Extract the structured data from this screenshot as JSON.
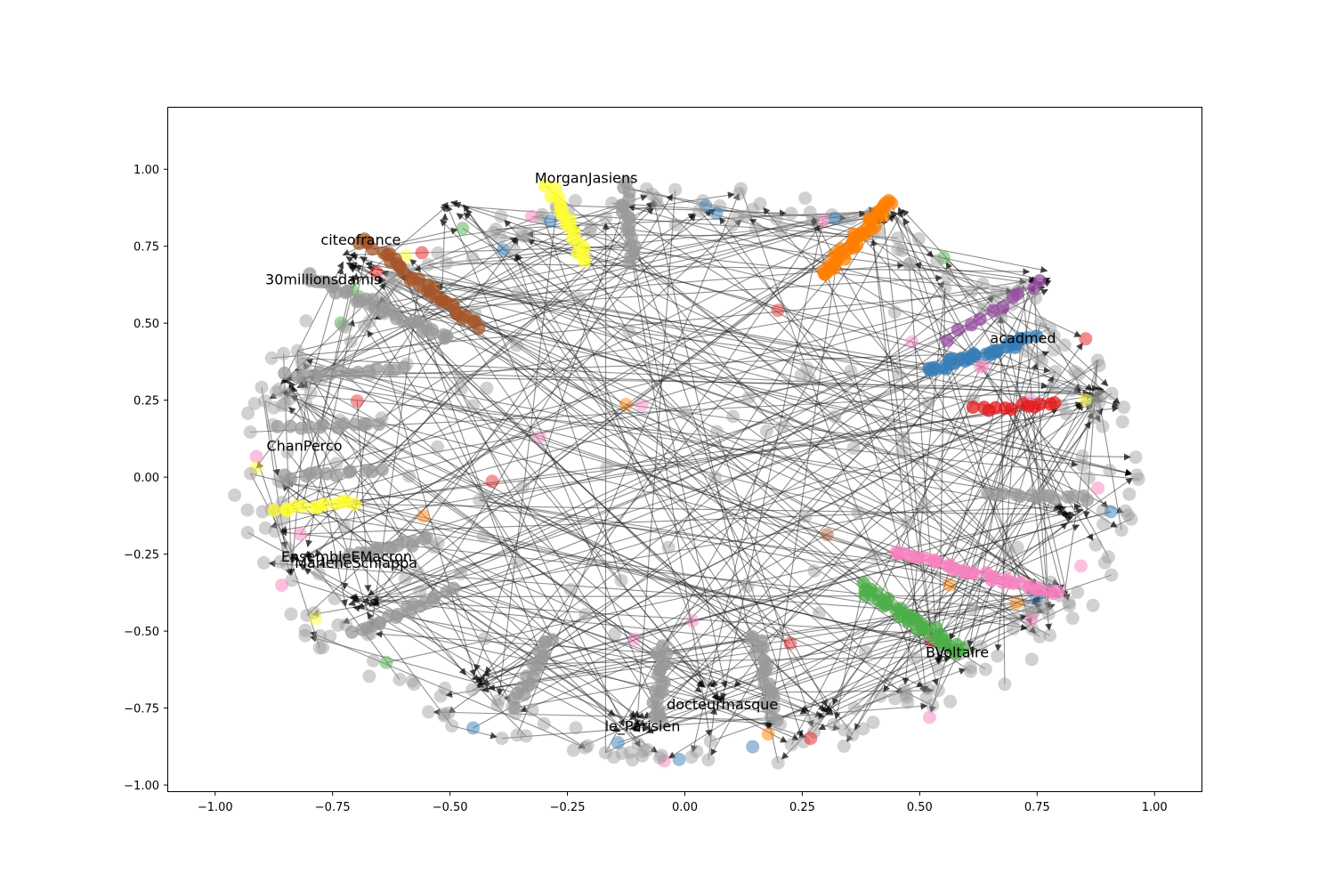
{
  "chart_data": {
    "type": "scatter",
    "title": "",
    "xlabel": "",
    "ylabel": "",
    "xlim": [
      -1.1,
      1.1
    ],
    "ylim": [
      -1.02,
      1.2
    ],
    "grid": false,
    "x_ticks": [
      -1.0,
      -0.75,
      -0.5,
      -0.25,
      0.0,
      0.25,
      0.5,
      0.75,
      1.0
    ],
    "y_ticks": [
      -1.0,
      -0.75,
      -0.5,
      -0.25,
      0.0,
      0.25,
      0.5,
      0.75,
      1.0
    ],
    "x_tick_labels": [
      "−1.00",
      "−0.75",
      "−0.50",
      "−0.25",
      "0.00",
      "0.25",
      "0.50",
      "0.75",
      "1.00"
    ],
    "y_tick_labels": [
      "−1.00",
      "−0.75",
      "−0.50",
      "−0.25",
      "0.00",
      "0.25",
      "0.50",
      "0.75",
      "1.00"
    ],
    "colors": {
      "gray": "#999999",
      "blue": "#377eb8",
      "orange": "#ff7f00",
      "green": "#4daf4a",
      "pink": "#f781bf",
      "brown": "#a65628",
      "purple": "#984ea3",
      "red": "#e41a1c",
      "yellow": "#ffff33",
      "edge": "#222222"
    },
    "clusters": [
      {
        "color": "orange",
        "x1": 0.29,
        "y1": 0.65,
        "x2": 0.44,
        "y2": 0.9,
        "n": 38,
        "width": 0.012
      },
      {
        "color": "blue",
        "x1": 0.52,
        "y1": 0.35,
        "x2": 0.74,
        "y2": 0.45,
        "n": 36,
        "width": 0.012
      },
      {
        "color": "green",
        "x1": 0.37,
        "y1": -0.35,
        "x2": 0.59,
        "y2": -0.57,
        "n": 40,
        "width": 0.014
      },
      {
        "color": "pink",
        "x1": 0.45,
        "y1": -0.24,
        "x2": 0.79,
        "y2": -0.38,
        "n": 34,
        "width": 0.01
      },
      {
        "color": "brown",
        "x1": -0.69,
        "y1": 0.78,
        "x2": -0.44,
        "y2": 0.49,
        "n": 34,
        "width": 0.012
      },
      {
        "color": "gray",
        "x1": -0.8,
        "y1": 0.65,
        "x2": -0.5,
        "y2": 0.45,
        "n": 32,
        "width": 0.012
      },
      {
        "color": "yellow",
        "x1": -0.29,
        "y1": 0.95,
        "x2": -0.21,
        "y2": 0.7,
        "n": 18,
        "width": 0.01
      },
      {
        "color": "gray",
        "x1": -0.13,
        "y1": 0.95,
        "x2": -0.11,
        "y2": 0.7,
        "n": 18,
        "width": 0.01
      },
      {
        "color": "gray",
        "x1": -0.05,
        "y1": -0.55,
        "x2": -0.06,
        "y2": -0.79,
        "n": 22,
        "width": 0.012
      },
      {
        "color": "gray",
        "x1": 0.15,
        "y1": -0.51,
        "x2": 0.19,
        "y2": -0.78,
        "n": 22,
        "width": 0.012
      },
      {
        "color": "gray",
        "x1": -0.29,
        "y1": -0.52,
        "x2": -0.36,
        "y2": -0.74,
        "n": 18,
        "width": 0.01
      },
      {
        "color": "gray",
        "x1": -0.5,
        "y1": -0.37,
        "x2": -0.7,
        "y2": -0.51,
        "n": 18,
        "width": 0.01
      },
      {
        "color": "gray",
        "x1": -0.55,
        "y1": -0.2,
        "x2": -0.73,
        "y2": -0.27,
        "n": 16,
        "width": 0.01
      },
      {
        "color": "yellow",
        "x1": -0.87,
        "y1": -0.11,
        "x2": -0.7,
        "y2": -0.08,
        "n": 12,
        "width": 0.008
      },
      {
        "color": "purple",
        "x1": 0.56,
        "y1": 0.45,
        "x2": 0.76,
        "y2": 0.64,
        "n": 10,
        "width": 0.008
      },
      {
        "color": "red",
        "x1": 0.62,
        "y1": 0.22,
        "x2": 0.79,
        "y2": 0.24,
        "n": 12,
        "width": 0.008
      },
      {
        "color": "gray",
        "x1": 0.65,
        "y1": -0.05,
        "x2": 0.86,
        "y2": -0.07,
        "n": 14,
        "width": 0.008
      },
      {
        "color": "gray",
        "x1": -0.85,
        "y1": 0.33,
        "x2": -0.6,
        "y2": 0.35,
        "n": 14,
        "width": 0.008
      },
      {
        "color": "gray",
        "x1": -0.86,
        "y1": 0.16,
        "x2": -0.65,
        "y2": 0.17,
        "n": 12,
        "width": 0.008
      },
      {
        "color": "gray",
        "x1": -0.85,
        "y1": 0.0,
        "x2": -0.65,
        "y2": 0.02,
        "n": 12,
        "width": 0.008
      }
    ],
    "labels": [
      {
        "text": "MorganJasiens",
        "x": -0.21,
        "y": 0.97
      },
      {
        "text": "citeofrance",
        "x": -0.69,
        "y": 0.77
      },
      {
        "text": "30millionsdamis",
        "x": -0.77,
        "y": 0.64
      },
      {
        "text": "acadmed",
        "x": 0.72,
        "y": 0.45
      },
      {
        "text": "ChanPerco",
        "x": -0.81,
        "y": 0.1
      },
      {
        "text": "EnsembleEMacron",
        "x": -0.72,
        "y": -0.26
      },
      {
        "text": "MarleneSchiappa",
        "x": -0.7,
        "y": -0.28
      },
      {
        "text": "BVoltaire",
        "x": 0.58,
        "y": -0.57
      },
      {
        "text": "docteurmasque",
        "x": 0.08,
        "y": -0.74
      },
      {
        "text": "le_Parisien",
        "x": -0.09,
        "y": -0.81
      }
    ]
  }
}
